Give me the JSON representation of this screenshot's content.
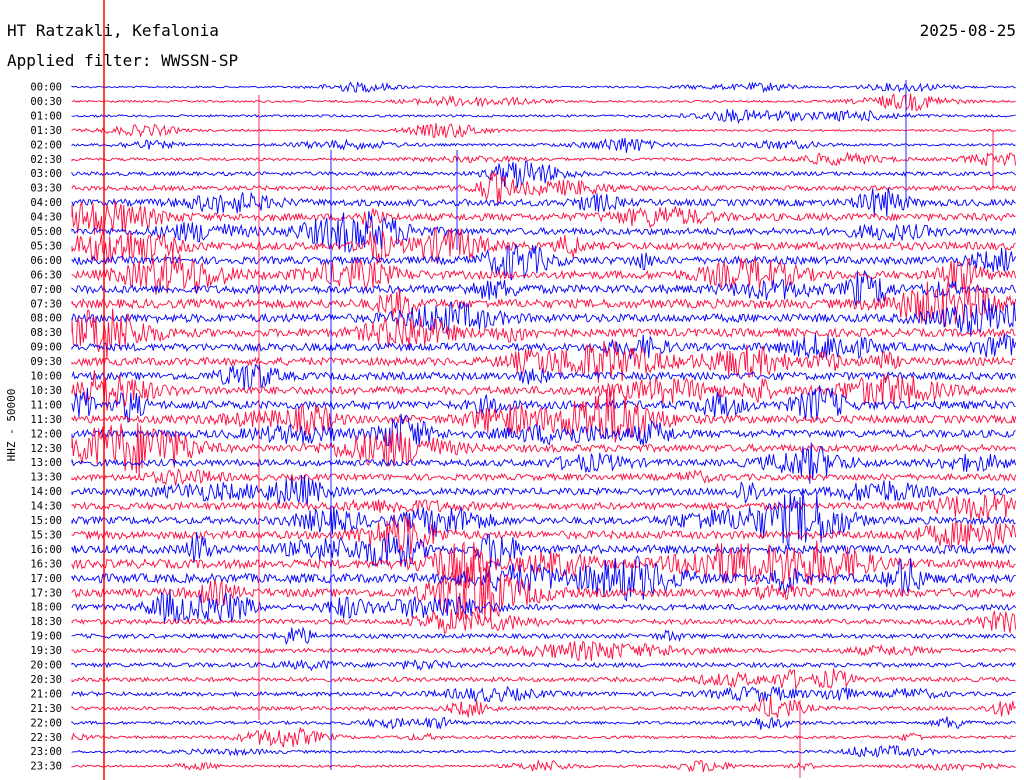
{
  "header": {
    "station": "HT Ratzakli, Kefalonia",
    "date": "2025-08-25",
    "filter": "Applied filter: WWSSN-SP"
  },
  "chart_data": {
    "type": "line",
    "ylabel": "HHZ - 50000",
    "times": [
      "00:00",
      "00:30",
      "01:00",
      "01:30",
      "02:00",
      "02:30",
      "03:00",
      "03:30",
      "04:00",
      "04:30",
      "05:00",
      "05:30",
      "06:00",
      "06:30",
      "07:00",
      "07:30",
      "08:00",
      "08:30",
      "09:00",
      "09:30",
      "10:00",
      "10:30",
      "11:00",
      "11:30",
      "12:00",
      "12:30",
      "13:00",
      "13:30",
      "14:00",
      "14:30",
      "15:00",
      "15:30",
      "16:00",
      "16:30",
      "17:00",
      "17:30",
      "18:00",
      "18:30",
      "19:00",
      "19:30",
      "20:00",
      "20:30",
      "21:00",
      "21:30",
      "22:00",
      "22:30",
      "23:00",
      "23:30"
    ],
    "trace_amplitude": [
      0.35,
      0.4,
      0.45,
      0.4,
      0.45,
      0.55,
      0.75,
      0.9,
      1.3,
      1.4,
      1.3,
      1.5,
      1.45,
      1.55,
      1.6,
      1.7,
      1.6,
      1.55,
      1.45,
      1.5,
      1.45,
      1.55,
      1.6,
      1.5,
      1.45,
      1.4,
      1.25,
      1.2,
      1.3,
      1.35,
      1.4,
      1.5,
      1.6,
      1.7,
      1.75,
      1.6,
      1.1,
      0.95,
      0.85,
      0.8,
      0.85,
      0.85,
      0.8,
      0.7,
      0.6,
      0.55,
      0.5,
      0.45
    ],
    "colors": {
      "even": "#0000ff",
      "odd": "#ff0a3c"
    },
    "marker_color": "#ff0000"
  }
}
